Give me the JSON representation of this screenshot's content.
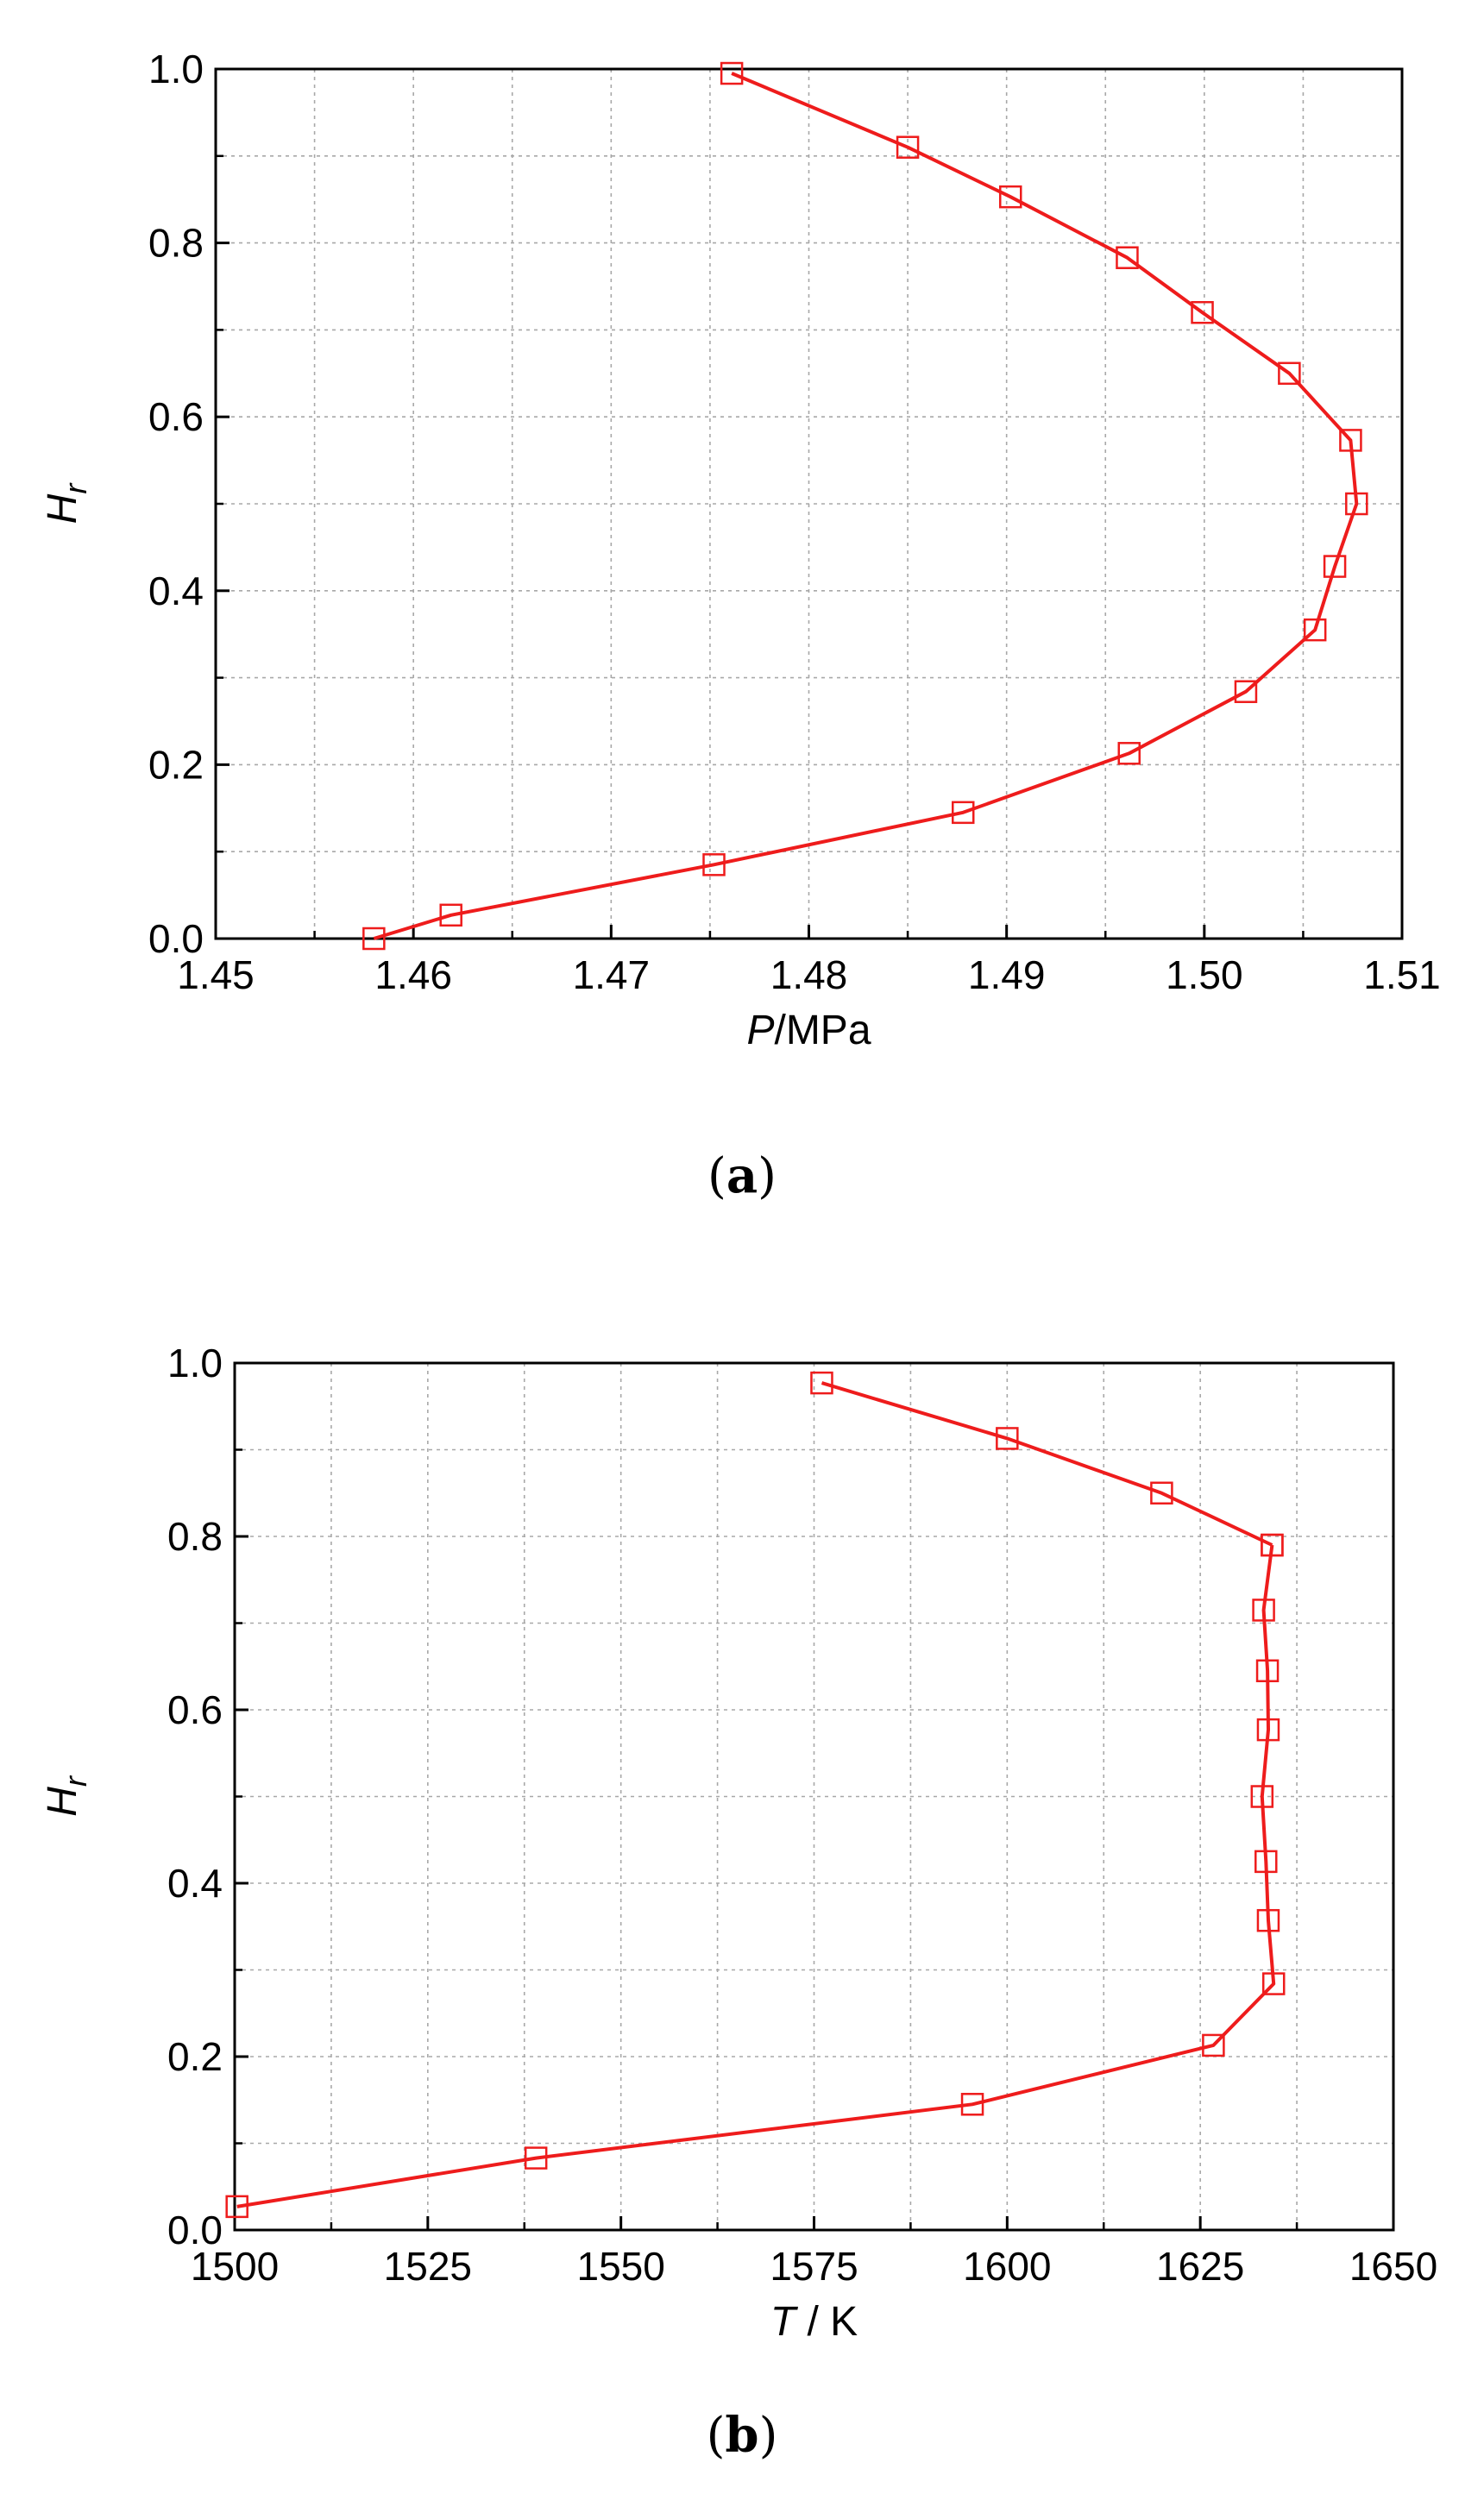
{
  "chart_data": [
    {
      "type": "line",
      "caption_letter": "a",
      "xlabel_var": "P",
      "xlabel_unit": "/MPa",
      "ylabel_var": "H",
      "ylabel_sub": "r",
      "xlim": [
        1.45,
        1.51
      ],
      "ylim": [
        0.0,
        1.0
      ],
      "xticks": [
        "1.45",
        "1.46",
        "1.47",
        "1.48",
        "1.49",
        "1.50",
        "1.51"
      ],
      "yticks": [
        "0.0",
        "0.2",
        "0.4",
        "0.6",
        "0.8",
        "1.0"
      ],
      "grid": true,
      "line_color": "#ee1c1c",
      "marker": "square-open",
      "series": [
        {
          "x": [
            1.458,
            1.4619,
            1.4752,
            1.4878,
            1.4962,
            1.5021,
            1.5056,
            1.5066,
            1.5077,
            1.5074,
            1.5043,
            1.4999,
            1.4961,
            1.4902,
            1.485,
            1.4761
          ],
          "y": [
            0.0,
            0.027,
            0.085,
            0.145,
            0.213,
            0.284,
            0.355,
            0.428,
            0.5,
            0.573,
            0.65,
            0.72,
            0.783,
            0.853,
            0.91,
            0.995
          ]
        }
      ]
    },
    {
      "type": "line",
      "caption_letter": "b",
      "xlabel_var": "T",
      "xlabel_unit": " / K",
      "ylabel_var": "H",
      "ylabel_sub": "r",
      "xlim": [
        1500,
        1650
      ],
      "ylim": [
        0.0,
        1.0
      ],
      "xticks": [
        "1500",
        "1525",
        "1550",
        "1575",
        "1600",
        "1625",
        "1650"
      ],
      "yticks": [
        "0.0",
        "0.2",
        "0.4",
        "0.6",
        "0.8",
        "1.0"
      ],
      "grid": true,
      "line_color": "#ee1c1c",
      "marker": "square-open",
      "series": [
        {
          "x": [
            1500.3,
            1539.0,
            1595.5,
            1626.7,
            1634.5,
            1633.8,
            1633.5,
            1633.0,
            1633.8,
            1633.7,
            1633.2,
            1634.3
          ],
          "y": [
            0.027,
            0.083,
            0.145,
            0.213,
            0.284,
            0.357,
            0.425,
            0.5,
            0.577,
            0.645,
            0.715,
            0.79
          ]
        },
        {
          "x": [
            1634.3,
            1620.0,
            1600.0,
            1576.0
          ],
          "y": [
            0.79,
            0.85,
            0.913,
            0.977
          ]
        }
      ]
    }
  ]
}
